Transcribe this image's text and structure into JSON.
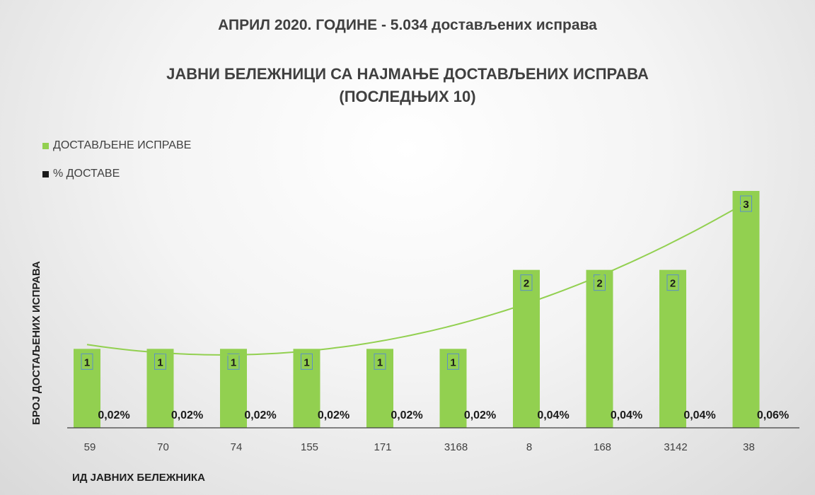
{
  "header": {
    "title_line1": "АПРИЛ 2020. ГОДИНЕ - 5.034 достављених исправа",
    "title_line2": "ЈАВНИ БЕЛЕЖНИЦИ СА НАЈМАЊЕ ДОСТАВЉЕНИХ ИСПРАВА",
    "title_line3": "(ПОСЛЕДЊИХ 10)"
  },
  "chart_data": {
    "type": "bar",
    "title": "ЈАВНИ БЕЛЕЖНИЦИ СА НАЈМАЊЕ ДОСТАВЉЕНИХ ИСПРАВА (ПОСЛЕДЊИХ 10)",
    "xlabel": "ИД ЈАВНИХ БЕЛЕЖНИКА",
    "ylabel": "БРОЈ ДОСТАЉЕНИХ ИСПРАВА",
    "categories": [
      "59",
      "70",
      "74",
      "155",
      "171",
      "3168",
      "8",
      "168",
      "3142",
      "38"
    ],
    "series": [
      {
        "name": "ДОСТАВЉЕНЕ ИСПРАВЕ",
        "values": [
          1,
          1,
          1,
          1,
          1,
          1,
          2,
          2,
          2,
          3
        ],
        "labels": [
          "1",
          "1",
          "1",
          "1",
          "1",
          "1",
          "2",
          "2",
          "2",
          "3"
        ],
        "color": "#92d050"
      },
      {
        "name": "% ДОСТАВЕ",
        "values": [
          0.02,
          0.02,
          0.02,
          0.02,
          0.02,
          0.02,
          0.04,
          0.04,
          0.04,
          0.06
        ],
        "labels": [
          "0,02%",
          "0,02%",
          "0,02%",
          "0,02%",
          "0,02%",
          "0,02%",
          "0,04%",
          "0,04%",
          "0,04%",
          "0,06%"
        ],
        "color": "#1a1a1a"
      }
    ],
    "trendline": {
      "type": "polynomial",
      "series": "ДОСТАВЉЕНЕ ИСПРАВЕ",
      "color": "#92d050"
    },
    "ylim": [
      0,
      3
    ],
    "grid": false,
    "legend": "top-left"
  }
}
